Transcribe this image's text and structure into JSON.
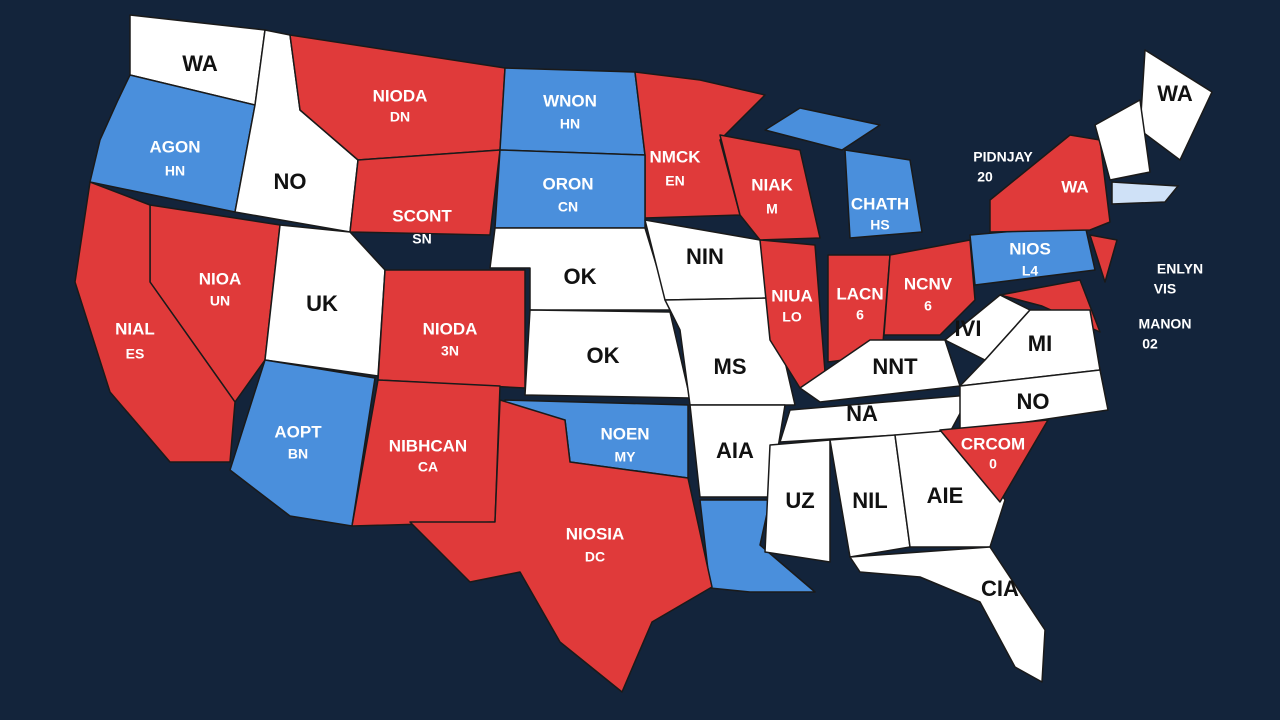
{
  "regions": [
    {
      "label": "WA"
    },
    {
      "label": "AGON",
      "sub": "HN"
    },
    {
      "label": "NO"
    },
    {
      "label": "NIODA",
      "sub": "DN"
    },
    {
      "label": "WNON",
      "sub": "HN"
    },
    {
      "label": "NMCK",
      "sub": "EN"
    },
    {
      "label": "NIAK",
      "sub": "M"
    },
    {
      "label": "CHATH",
      "sub": "HS"
    },
    {
      "label": "SCONT",
      "sub": "SN"
    },
    {
      "label": "ORON",
      "sub": "CN"
    },
    {
      "label": "OK"
    },
    {
      "label": "NIN"
    },
    {
      "label": "NIOA",
      "sub": "UN"
    },
    {
      "label": "NIAL",
      "sub": "ES"
    },
    {
      "label": "UK"
    },
    {
      "label": "NIODA",
      "sub": "3N"
    },
    {
      "label": "OK"
    },
    {
      "label": "MS"
    },
    {
      "label": "NIUA",
      "sub": "LO"
    },
    {
      "label": "LACN",
      "sub": "6"
    },
    {
      "label": "NCNV",
      "sub": "6"
    },
    {
      "label": "NIOS",
      "sub": "L4"
    },
    {
      "label": "WA"
    },
    {
      "label": "WA"
    },
    {
      "label": "IVI"
    },
    {
      "label": "MI"
    },
    {
      "label": "NNT"
    },
    {
      "label": "NA"
    },
    {
      "label": "NO"
    },
    {
      "label": "NOEN",
      "sub": "MY"
    },
    {
      "label": "AIA"
    },
    {
      "label": "UZ"
    },
    {
      "label": "NIL"
    },
    {
      "label": "AIE"
    },
    {
      "label": "CRCOM",
      "sub": "0"
    },
    {
      "label": "CIA"
    },
    {
      "label": "AOPT",
      "sub": "BN"
    },
    {
      "label": "NIBHCAN",
      "sub": "CA"
    },
    {
      "label": "NIOSIA",
      "sub": "DC"
    }
  ],
  "annotations": [
    {
      "title": "PIDNJAY",
      "sub": "20"
    },
    {
      "title": "ENLYN",
      "sub": "VIS"
    },
    {
      "title": "MANON",
      "sub": "02"
    }
  ]
}
